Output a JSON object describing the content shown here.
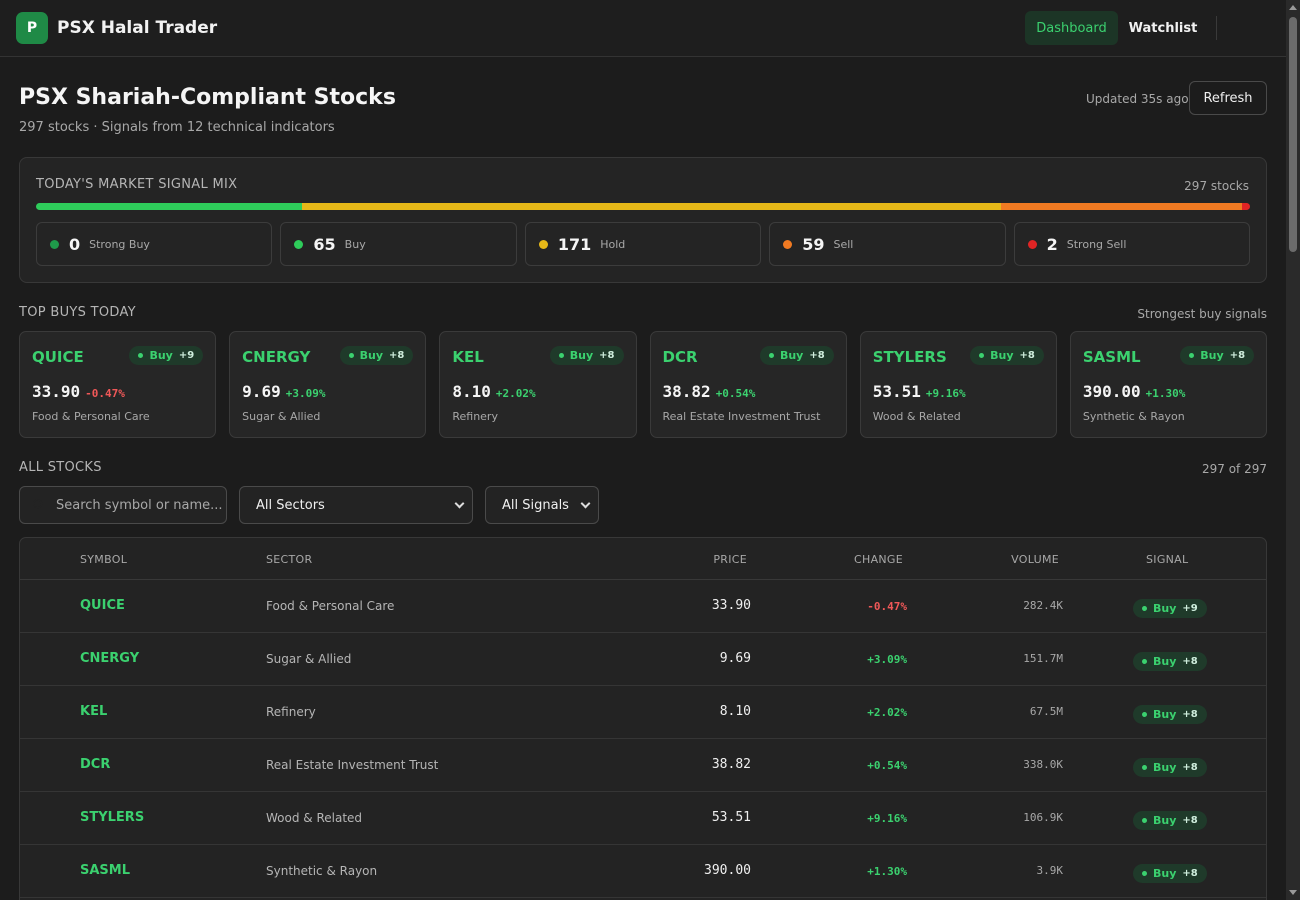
{
  "app": {
    "logo_letter": "P",
    "name": "PSX Halal Trader"
  },
  "nav": {
    "dashboard": "Dashboard",
    "watchlist": "Watchlist"
  },
  "header": {
    "title": "PSX Shariah-Compliant Stocks",
    "subtitle": "297 stocks · Signals from 12 technical indicators",
    "updated": "Updated 35s ago",
    "refresh": "Refresh"
  },
  "signal_mix": {
    "title": "TODAY'S MARKET SIGNAL MIX",
    "total": "297 stocks",
    "items": [
      {
        "count": "0",
        "label": "Strong Buy",
        "color": "#1f9a4a",
        "share": 0
      },
      {
        "count": "65",
        "label": "Buy",
        "color": "#2ecc5a",
        "share": 65
      },
      {
        "count": "171",
        "label": "Hold",
        "color": "#e6b818",
        "share": 171
      },
      {
        "count": "59",
        "label": "Sell",
        "color": "#f07a22",
        "share": 59
      },
      {
        "count": "2",
        "label": "Strong Sell",
        "color": "#e02424",
        "share": 2
      }
    ]
  },
  "top_buys": {
    "title": "TOP BUYS TODAY",
    "caption": "Strongest buy signals",
    "cards": [
      {
        "symbol": "QUICE",
        "signal": "Buy",
        "score": "+9",
        "price": "33.90",
        "change": "-0.47%",
        "dir": "neg",
        "sector": "Food & Personal Care"
      },
      {
        "symbol": "CNERGY",
        "signal": "Buy",
        "score": "+8",
        "price": "9.69",
        "change": "+3.09%",
        "dir": "pos",
        "sector": "Sugar & Allied"
      },
      {
        "symbol": "KEL",
        "signal": "Buy",
        "score": "+8",
        "price": "8.10",
        "change": "+2.02%",
        "dir": "pos",
        "sector": "Refinery"
      },
      {
        "symbol": "DCR",
        "signal": "Buy",
        "score": "+8",
        "price": "38.82",
        "change": "+0.54%",
        "dir": "pos",
        "sector": "Real Estate Investment Trust"
      },
      {
        "symbol": "STYLERS",
        "signal": "Buy",
        "score": "+8",
        "price": "53.51",
        "change": "+9.16%",
        "dir": "pos",
        "sector": "Wood & Related"
      },
      {
        "symbol": "SASML",
        "signal": "Buy",
        "score": "+8",
        "price": "390.00",
        "change": "+1.30%",
        "dir": "pos",
        "sector": "Synthetic & Rayon"
      }
    ]
  },
  "all_stocks": {
    "title": "ALL STOCKS",
    "count": "297 of 297",
    "search_placeholder": "Search symbol or name...",
    "sector_filter": "All Sectors",
    "signal_filter": "All Signals",
    "columns": [
      "SYMBOL",
      "SECTOR",
      "PRICE",
      "CHANGE",
      "VOLUME",
      "SIGNAL"
    ],
    "rows": [
      {
        "symbol": "QUICE",
        "sector": "Food & Personal Care",
        "price": "33.90",
        "change": "-0.47%",
        "dir": "neg",
        "volume": "282.4K",
        "signal": "Buy",
        "score": "+9"
      },
      {
        "symbol": "CNERGY",
        "sector": "Sugar & Allied",
        "price": "9.69",
        "change": "+3.09%",
        "dir": "pos",
        "volume": "151.7M",
        "signal": "Buy",
        "score": "+8"
      },
      {
        "symbol": "KEL",
        "sector": "Refinery",
        "price": "8.10",
        "change": "+2.02%",
        "dir": "pos",
        "volume": "67.5M",
        "signal": "Buy",
        "score": "+8"
      },
      {
        "symbol": "DCR",
        "sector": "Real Estate Investment Trust",
        "price": "38.82",
        "change": "+0.54%",
        "dir": "pos",
        "volume": "338.0K",
        "signal": "Buy",
        "score": "+8"
      },
      {
        "symbol": "STYLERS",
        "sector": "Wood & Related",
        "price": "53.51",
        "change": "+9.16%",
        "dir": "pos",
        "volume": "106.9K",
        "signal": "Buy",
        "score": "+8"
      },
      {
        "symbol": "SASML",
        "sector": "Synthetic & Rayon",
        "price": "390.00",
        "change": "+1.30%",
        "dir": "pos",
        "volume": "3.9K",
        "signal": "Buy",
        "score": "+8"
      }
    ]
  }
}
